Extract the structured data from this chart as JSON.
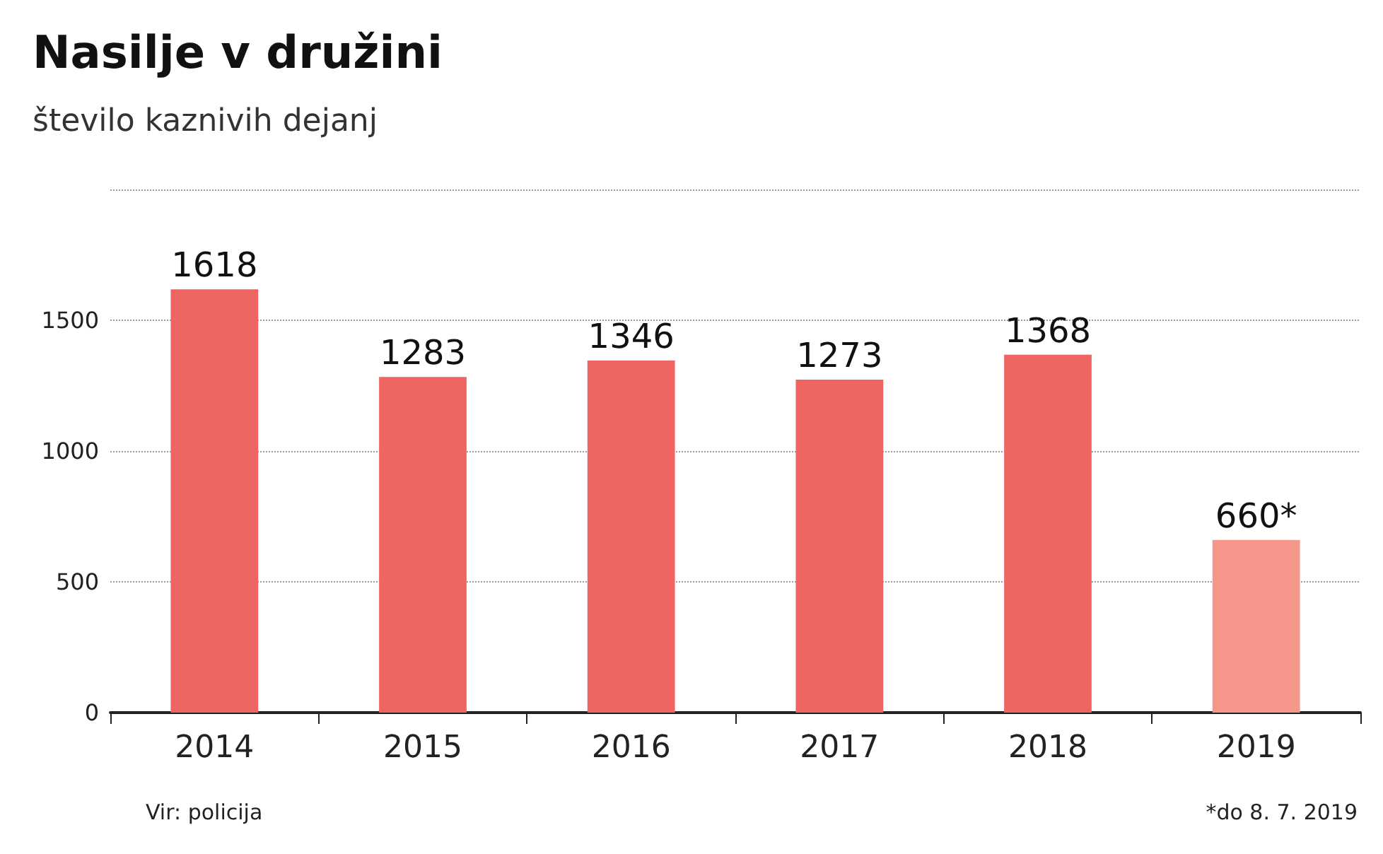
{
  "chart_data": {
    "type": "bar",
    "title": "Nasilje v družini",
    "subtitle": "število kaznivih dejanj",
    "categories": [
      "2014",
      "2015",
      "2016",
      "2017",
      "2018",
      "2019"
    ],
    "values": [
      1618,
      1283,
      1346,
      1273,
      1368,
      660
    ],
    "colors": [
      "#ef6561",
      "#ef6561",
      "#ef6561",
      "#ef6561",
      "#ef6561",
      "#f5968b"
    ],
    "value_labels": [
      "1618",
      "1283",
      "1346",
      "1273",
      "1368",
      "660*"
    ],
    "ylim": [
      0,
      2000
    ],
    "yticks": [
      0,
      500,
      1000,
      1500,
      {
        "value": 2000,
        "label": null
      }
    ],
    "grid": "y",
    "annotations": [
      "Vir: policija",
      "*do 8. 7. 2019"
    ]
  }
}
